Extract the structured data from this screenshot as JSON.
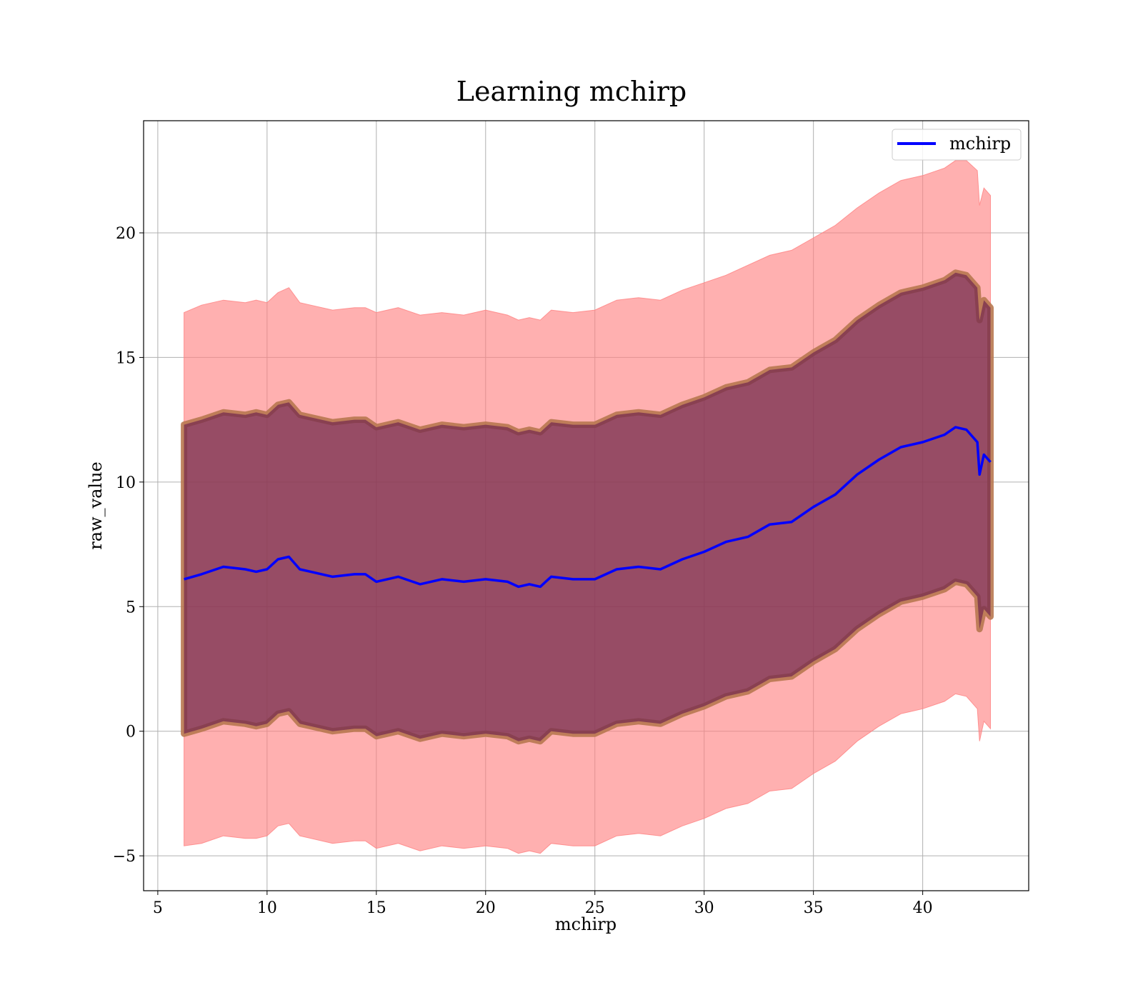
{
  "chart_data": {
    "type": "line",
    "title": "Learning mchirp",
    "xlabel": "mchirp",
    "ylabel": "raw_value",
    "xlim": [
      4.35,
      44.85
    ],
    "ylim": [
      -6.4,
      24.5
    ],
    "x_ticks": [
      5,
      10,
      15,
      20,
      25,
      30,
      35,
      40
    ],
    "y_ticks": [
      -5,
      0,
      5,
      10,
      15,
      20
    ],
    "x_tick_labels": [
      "5",
      "10",
      "15",
      "20",
      "25",
      "30",
      "35",
      "40"
    ],
    "y_tick_labels": [
      "−5",
      "0",
      "5",
      "10",
      "15",
      "20"
    ],
    "grid": true,
    "legend_position": "top-right",
    "colors": {
      "line": "#0000ff",
      "outer_band": "#ff8080",
      "inner_band": "#7a3050",
      "inner_band_edge": "#b87850",
      "grid": "#b0b0b0"
    },
    "series": [
      {
        "name": "mchirp",
        "x": [
          6.2,
          7,
          8,
          9,
          9.5,
          10,
          10.5,
          11,
          11.5,
          12,
          13,
          14,
          14.5,
          15,
          16,
          17,
          18,
          19,
          20,
          21,
          21.5,
          22,
          22.5,
          23,
          24,
          25,
          26,
          27,
          28,
          29,
          30,
          31,
          32,
          33,
          34,
          35,
          36,
          37,
          38,
          39,
          40,
          41,
          41.5,
          42,
          42.5,
          42.6,
          42.8,
          43.1
        ],
        "y": [
          6.1,
          6.3,
          6.6,
          6.5,
          6.4,
          6.5,
          6.9,
          7.0,
          6.5,
          6.4,
          6.2,
          6.3,
          6.3,
          6.0,
          6.2,
          5.9,
          6.1,
          6.0,
          6.1,
          6.0,
          5.8,
          5.9,
          5.8,
          6.2,
          6.1,
          6.1,
          6.5,
          6.6,
          6.5,
          6.9,
          7.2,
          7.6,
          7.8,
          8.3,
          8.4,
          9.0,
          9.5,
          10.3,
          10.9,
          11.4,
          11.6,
          11.9,
          12.2,
          12.1,
          11.6,
          10.3,
          11.1,
          10.8
        ]
      }
    ],
    "bands": [
      {
        "kind": "outer",
        "x": [
          6.2,
          7,
          8,
          9,
          9.5,
          10,
          10.5,
          11,
          11.5,
          12,
          13,
          14,
          14.5,
          15,
          16,
          17,
          18,
          19,
          20,
          21,
          21.5,
          22,
          22.5,
          23,
          24,
          25,
          26,
          27,
          28,
          29,
          30,
          31,
          32,
          33,
          34,
          35,
          36,
          37,
          38,
          39,
          40,
          41,
          41.5,
          42,
          42.5,
          42.6,
          42.8,
          43.1
        ],
        "upper": [
          16.8,
          17.1,
          17.3,
          17.2,
          17.3,
          17.2,
          17.6,
          17.8,
          17.2,
          17.1,
          16.9,
          17.0,
          17.0,
          16.8,
          17.0,
          16.7,
          16.8,
          16.7,
          16.9,
          16.7,
          16.5,
          16.6,
          16.5,
          16.9,
          16.8,
          16.9,
          17.3,
          17.4,
          17.3,
          17.7,
          18.0,
          18.3,
          18.7,
          19.1,
          19.3,
          19.8,
          20.3,
          21.0,
          21.6,
          22.1,
          22.3,
          22.6,
          22.9,
          22.9,
          22.5,
          21.1,
          21.8,
          21.5
        ],
        "lower": [
          -4.6,
          -4.5,
          -4.2,
          -4.3,
          -4.3,
          -4.2,
          -3.8,
          -3.7,
          -4.2,
          -4.3,
          -4.5,
          -4.4,
          -4.4,
          -4.7,
          -4.5,
          -4.8,
          -4.6,
          -4.7,
          -4.6,
          -4.7,
          -4.9,
          -4.8,
          -4.9,
          -4.5,
          -4.6,
          -4.6,
          -4.2,
          -4.1,
          -4.2,
          -3.8,
          -3.5,
          -3.1,
          -2.9,
          -2.4,
          -2.3,
          -1.7,
          -1.2,
          -0.4,
          0.2,
          0.7,
          0.9,
          1.2,
          1.5,
          1.4,
          0.9,
          -0.4,
          0.4,
          0.1
        ]
      },
      {
        "kind": "inner",
        "x": [
          6.2,
          7,
          8,
          9,
          9.5,
          10,
          10.5,
          11,
          11.5,
          12,
          13,
          14,
          14.5,
          15,
          16,
          17,
          18,
          19,
          20,
          21,
          21.5,
          22,
          22.5,
          23,
          24,
          25,
          26,
          27,
          28,
          29,
          30,
          31,
          32,
          33,
          34,
          35,
          36,
          37,
          38,
          39,
          40,
          41,
          41.5,
          42,
          42.5,
          42.6,
          42.8,
          43.1
        ],
        "upper": [
          12.3,
          12.5,
          12.8,
          12.7,
          12.8,
          12.7,
          13.1,
          13.2,
          12.7,
          12.6,
          12.4,
          12.5,
          12.5,
          12.2,
          12.4,
          12.1,
          12.3,
          12.2,
          12.3,
          12.2,
          12.0,
          12.1,
          12.0,
          12.4,
          12.3,
          12.3,
          12.7,
          12.8,
          12.7,
          13.1,
          13.4,
          13.8,
          14.0,
          14.5,
          14.6,
          15.2,
          15.7,
          16.5,
          17.1,
          17.6,
          17.8,
          18.1,
          18.4,
          18.3,
          17.8,
          16.5,
          17.3,
          17.0
        ],
        "lower": [
          -0.1,
          0.1,
          0.4,
          0.3,
          0.2,
          0.3,
          0.7,
          0.8,
          0.3,
          0.2,
          0.0,
          0.1,
          0.1,
          -0.2,
          0.0,
          -0.3,
          -0.1,
          -0.2,
          -0.1,
          -0.2,
          -0.4,
          -0.3,
          -0.4,
          0.0,
          -0.1,
          -0.1,
          0.3,
          0.4,
          0.3,
          0.7,
          1.0,
          1.4,
          1.6,
          2.1,
          2.2,
          2.8,
          3.3,
          4.1,
          4.7,
          5.2,
          5.4,
          5.7,
          6.0,
          5.9,
          5.4,
          4.1,
          4.9,
          4.6
        ]
      }
    ]
  }
}
